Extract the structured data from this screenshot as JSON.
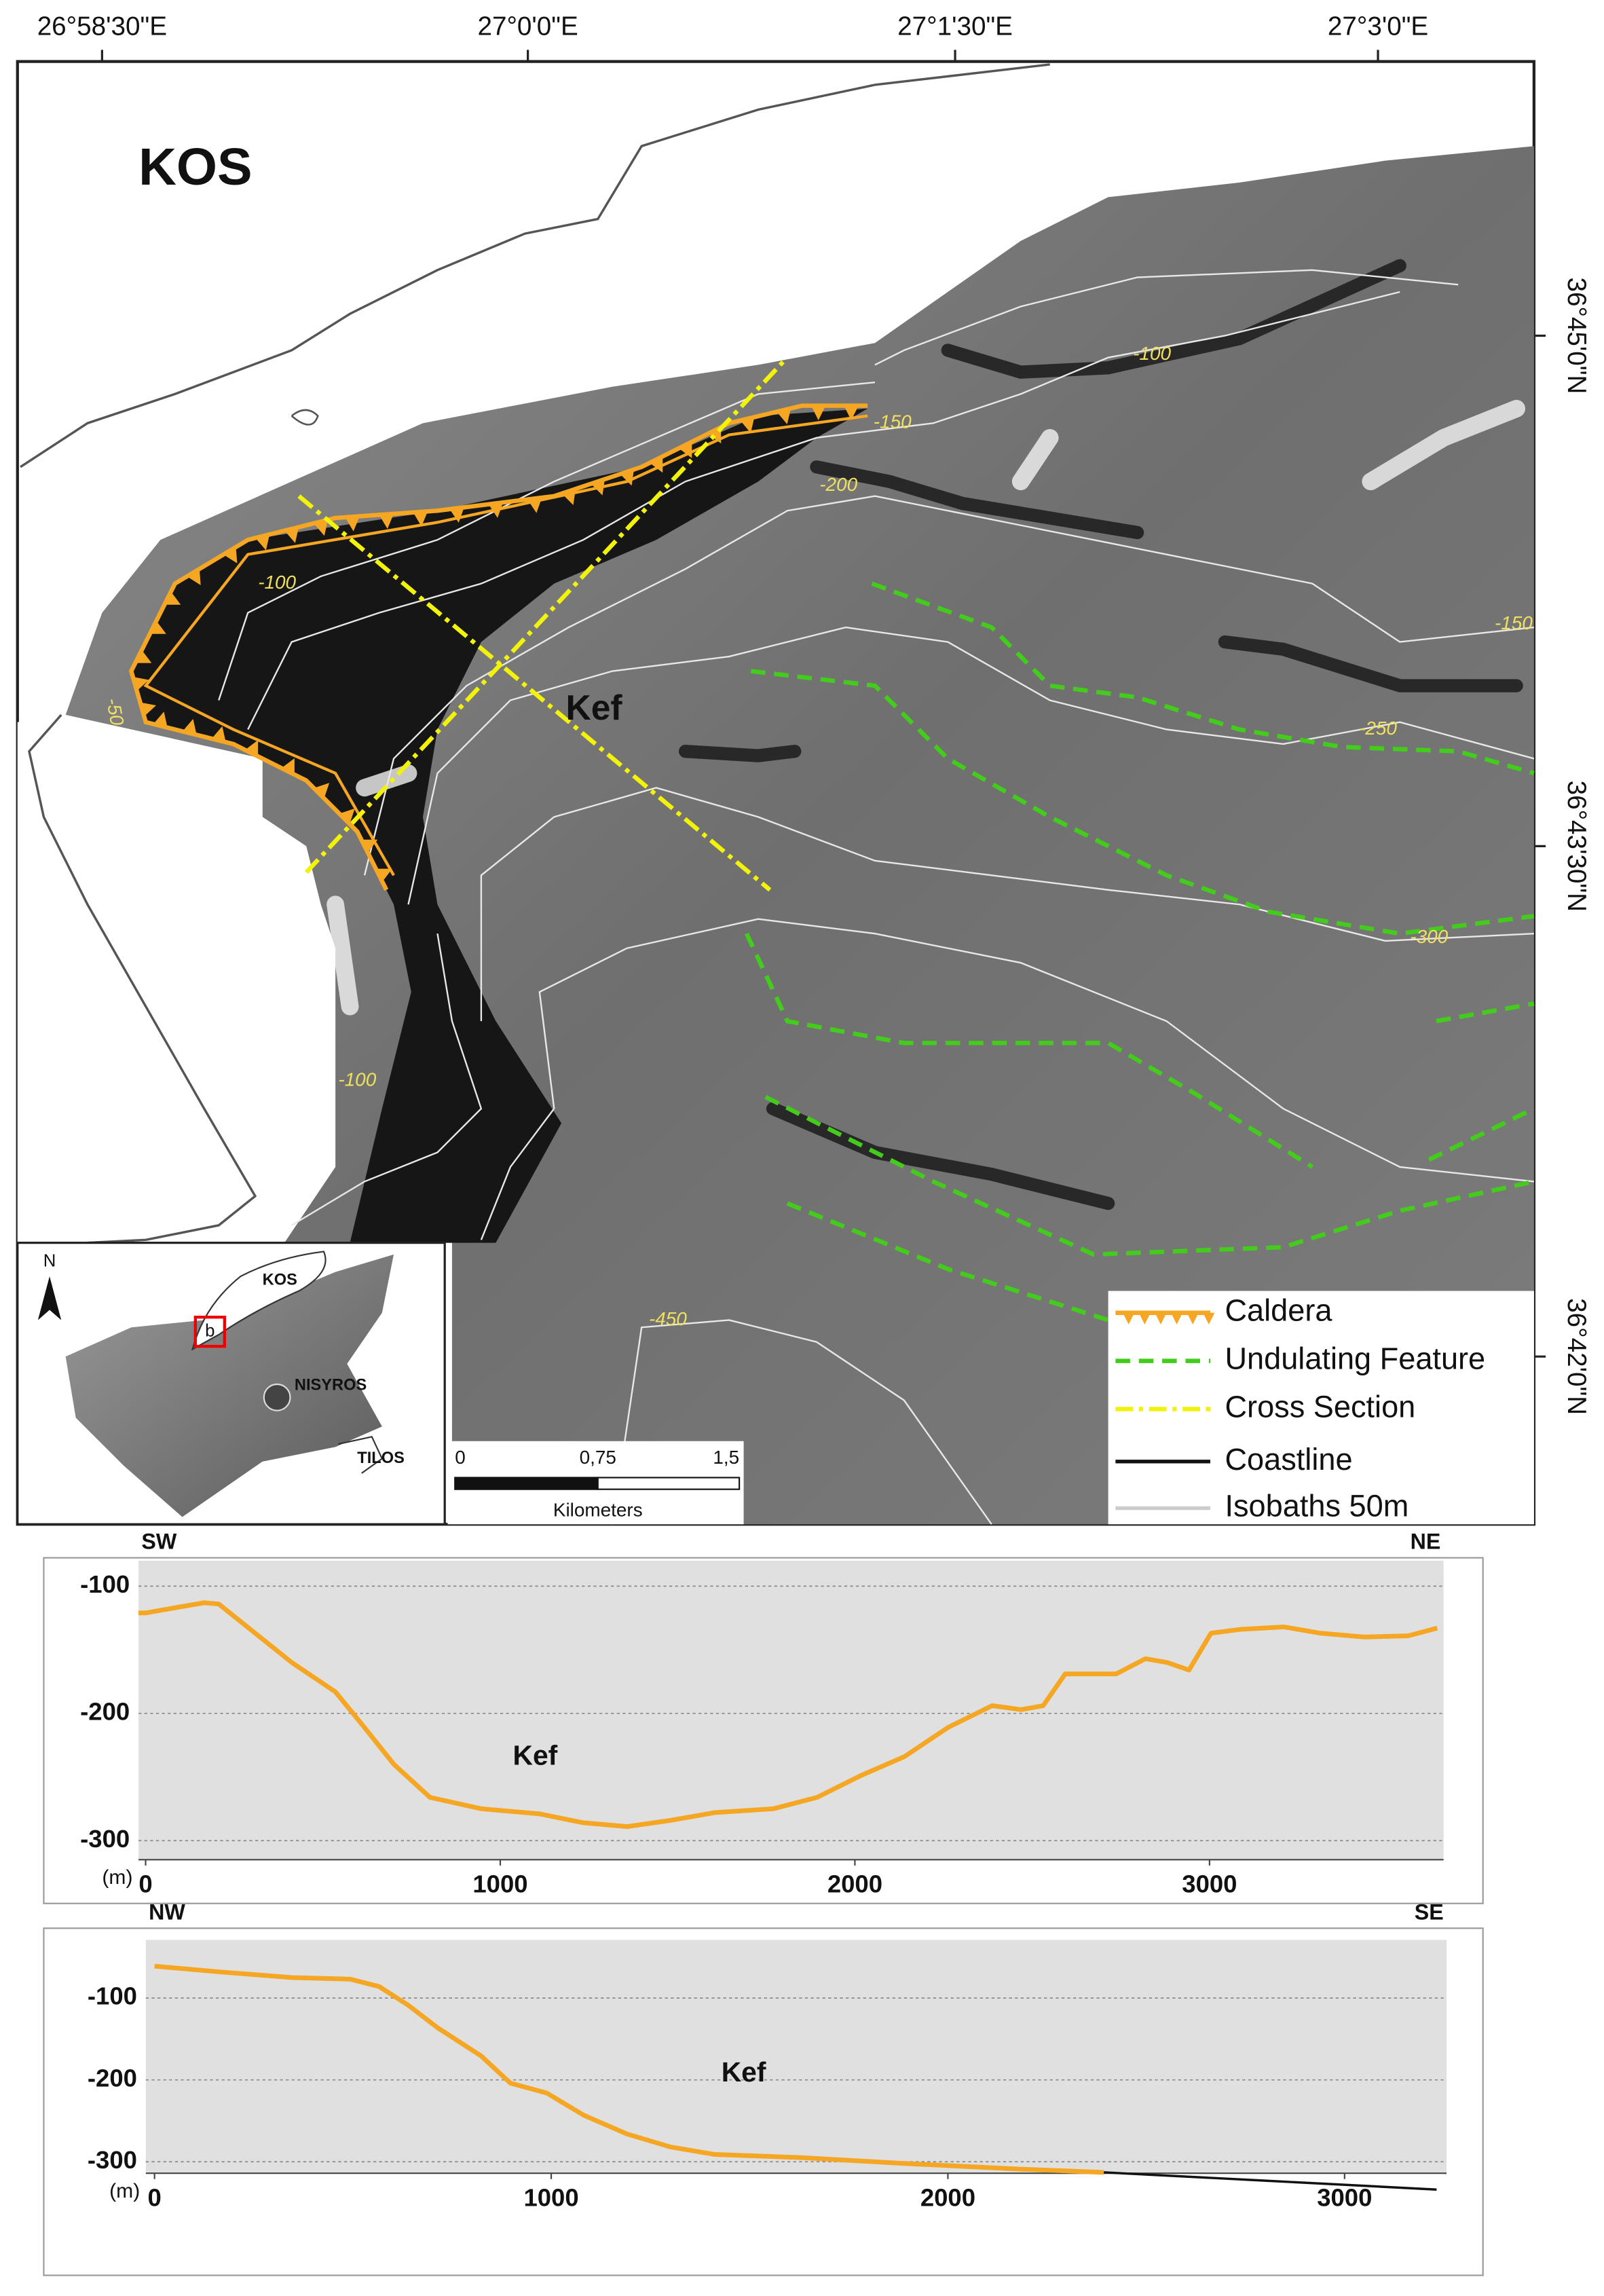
{
  "map": {
    "title": "KOS",
    "feature": "Kef",
    "lon_labels": [
      "26°58'30\"E",
      "27°0'0\"E",
      "27°1'30\"E",
      "27°3'0\"E"
    ],
    "lat_labels": [
      "36°45'0\"N",
      "36°43'30\"N",
      "36°42'0\"N"
    ],
    "isobath_labels": [
      "-100",
      "-150",
      "-200",
      "-100",
      "-150",
      "-250",
      "-300",
      "-100",
      "-450",
      "-50"
    ],
    "legend": [
      "Caldera",
      "Undulating Feature",
      "Cross Section",
      "Coastline",
      "Isobaths 50m"
    ],
    "scale_bar": {
      "labels": [
        "0",
        "0,75",
        "1,5"
      ],
      "unit": "Kilometers"
    },
    "inset": {
      "north": "N",
      "labels": [
        "KOS",
        "NISYROS",
        "TILOS"
      ],
      "marker": "b"
    }
  },
  "chart_data": [
    {
      "type": "line",
      "left_label": "SW",
      "right_label": "NE",
      "annotation": "Kef",
      "ylabel": "(m)",
      "xlim": [
        -20,
        3660
      ],
      "ylim": [
        -315,
        -80
      ],
      "xticks": [
        0,
        1000,
        2000,
        3000
      ],
      "yticks": [
        -100,
        -200,
        -300
      ],
      "grid": true,
      "series": [
        {
          "color": "#f5a623",
          "x": [
            -20,
            0,
            82,
            165,
            206,
            309,
            412,
            535,
            617,
            700,
            802,
            947,
            1111,
            1235,
            1358,
            1481,
            1605,
            1770,
            1893,
            2016,
            2140,
            2263,
            2387,
            2469,
            2531,
            2593,
            2675,
            2737,
            2819,
            2881,
            2942,
            3004,
            3086,
            3210,
            3313,
            3436,
            3560,
            3642
          ],
          "values": [
            -121,
            -121,
            -117,
            -113,
            -114,
            -137,
            -160,
            -183,
            -211,
            -240,
            -266,
            -275,
            -279,
            -286,
            -289,
            -284,
            -278,
            -275,
            -266,
            -249,
            -234,
            -211,
            -194,
            -197,
            -194,
            -169,
            -169,
            -169,
            -157,
            -160,
            -166,
            -137,
            -134,
            -132,
            -137,
            -140,
            -139,
            -133
          ]
        }
      ]
    },
    {
      "type": "line",
      "left_label": "NW",
      "right_label": "SE",
      "annotation": "Kef",
      "ylabel": "(m)",
      "xlim": [
        -22,
        3257
      ],
      "ylim": [
        -314,
        -29
      ],
      "xticks": [
        0,
        1000,
        2000,
        3000
      ],
      "yticks": [
        -100,
        -200,
        -300
      ],
      "grid": true,
      "series": [
        {
          "color": "#f5a623",
          "x": [
            0,
            162,
            346,
            493,
            566,
            640,
            713,
            824,
            897,
            989,
            1081,
            1191,
            1301,
            1412,
            1632,
            1890,
            2184,
            2393
          ],
          "values": [
            -61,
            -68,
            -75,
            -77,
            -86,
            -109,
            -136,
            -171,
            -204,
            -216,
            -243,
            -266,
            -282,
            -291,
            -295,
            -302,
            -309,
            -313
          ]
        },
        {
          "color": "#111111",
          "x": [
            2393,
            2800,
            3232
          ],
          "values": [
            -313,
            -323,
            -334
          ]
        }
      ]
    }
  ]
}
